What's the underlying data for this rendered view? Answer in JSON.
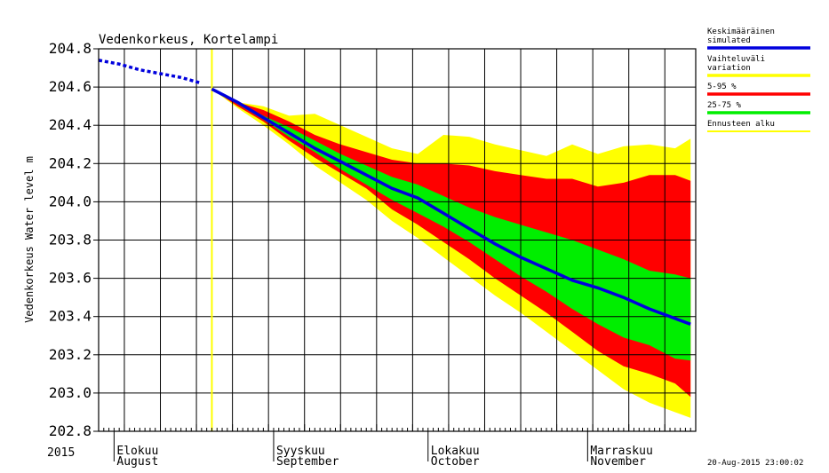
{
  "chart_data": {
    "type": "area",
    "title": "Vedenkorkeus, Kortelampi",
    "ylabel": "Vedenkorkeus Water level m",
    "xlabel": "",
    "ylim": [
      202.8,
      204.8
    ],
    "yticks": [
      "204.8",
      "204.6",
      "204.4",
      "204.2",
      "204.0",
      "203.8",
      "203.6",
      "203.4",
      "203.2",
      "203.0",
      "202.8"
    ],
    "year_label": "2015",
    "x_start": "2015-07-29",
    "x_end": "2015-11-22",
    "forecast_start": "2015-08-20",
    "grid": true,
    "month_labels": [
      {
        "fi": "Elokuu",
        "en": "August",
        "date": "2015-08-01"
      },
      {
        "fi": "Syyskuu",
        "en": "September",
        "date": "2015-09-01"
      },
      {
        "fi": "Lokakuu",
        "en": "October",
        "date": "2015-10-01"
      },
      {
        "fi": "Marraskuu",
        "en": "November",
        "date": "2015-11-01"
      }
    ],
    "legend_position": "right",
    "legend": [
      {
        "label": "Keskimääräinen\nsimulated",
        "color": "#0000dd"
      },
      {
        "label": "Vaihteluväli\nvariation",
        "color": "#ffff00"
      },
      {
        "label": "5-95 %",
        "color": "#ff0000"
      },
      {
        "label": "25-75 %",
        "color": "#00ee00"
      },
      {
        "label": "Ennusteen alku",
        "color": "#ffff00"
      }
    ],
    "series": [
      {
        "name": "observed",
        "color": "#0000dd",
        "x": [
          "2015-07-29",
          "2015-08-02",
          "2015-08-06",
          "2015-08-10",
          "2015-08-14",
          "2015-08-18"
        ],
        "values": [
          204.74,
          204.72,
          204.69,
          204.67,
          204.65,
          204.62
        ]
      },
      {
        "name": "Keskimääräinen simulated",
        "color": "#0000dd",
        "x": [
          "2015-08-20",
          "2015-08-25",
          "2015-08-30",
          "2015-09-04",
          "2015-09-09",
          "2015-09-14",
          "2015-09-19",
          "2015-09-24",
          "2015-09-29",
          "2015-10-04",
          "2015-10-09",
          "2015-10-14",
          "2015-10-19",
          "2015-10-24",
          "2015-10-29",
          "2015-11-03",
          "2015-11-08",
          "2015-11-13",
          "2015-11-18",
          "2015-11-21"
        ],
        "values": [
          204.59,
          204.52,
          204.44,
          204.36,
          204.28,
          204.21,
          204.14,
          204.07,
          204.02,
          203.94,
          203.86,
          203.78,
          203.71,
          203.65,
          203.59,
          203.55,
          203.5,
          203.44,
          203.39,
          203.36
        ]
      },
      {
        "name": "Vaihteluväli variation",
        "color": "#ffff00",
        "x": [
          "2015-08-20",
          "2015-08-25",
          "2015-08-30",
          "2015-09-04",
          "2015-09-09",
          "2015-09-14",
          "2015-09-19",
          "2015-09-24",
          "2015-09-29",
          "2015-10-04",
          "2015-10-09",
          "2015-10-14",
          "2015-10-19",
          "2015-10-24",
          "2015-10-29",
          "2015-11-03",
          "2015-11-08",
          "2015-11-13",
          "2015-11-18",
          "2015-11-21"
        ],
        "upper": [
          204.59,
          204.52,
          204.5,
          204.45,
          204.46,
          204.4,
          204.34,
          204.28,
          204.25,
          204.35,
          204.34,
          204.3,
          204.27,
          204.24,
          204.3,
          204.25,
          204.29,
          204.3,
          204.28,
          204.33
        ],
        "lower": [
          204.59,
          204.49,
          204.4,
          204.3,
          204.19,
          204.1,
          204.01,
          203.9,
          203.81,
          203.71,
          203.61,
          203.51,
          203.42,
          203.32,
          203.22,
          203.12,
          203.02,
          202.95,
          202.9,
          202.87
        ]
      },
      {
        "name": "5-95 %",
        "color": "#ff0000",
        "x": [
          "2015-08-20",
          "2015-08-25",
          "2015-08-30",
          "2015-09-04",
          "2015-09-09",
          "2015-09-14",
          "2015-09-19",
          "2015-09-24",
          "2015-09-29",
          "2015-10-04",
          "2015-10-09",
          "2015-10-14",
          "2015-10-19",
          "2015-10-24",
          "2015-10-29",
          "2015-11-03",
          "2015-11-08",
          "2015-11-13",
          "2015-11-18",
          "2015-11-21"
        ],
        "upper": [
          204.59,
          204.52,
          204.48,
          204.42,
          204.35,
          204.3,
          204.26,
          204.22,
          204.2,
          204.2,
          204.19,
          204.16,
          204.14,
          204.12,
          204.12,
          204.08,
          204.1,
          204.14,
          204.14,
          204.11
        ],
        "lower": [
          204.59,
          204.5,
          204.42,
          204.32,
          204.23,
          204.15,
          204.07,
          203.96,
          203.88,
          203.79,
          203.7,
          203.6,
          203.51,
          203.42,
          203.32,
          203.22,
          203.14,
          203.1,
          203.05,
          202.98
        ]
      },
      {
        "name": "25-75 %",
        "color": "#00ee00",
        "x": [
          "2015-08-20",
          "2015-08-25",
          "2015-08-30",
          "2015-09-04",
          "2015-09-09",
          "2015-09-14",
          "2015-09-19",
          "2015-09-24",
          "2015-09-29",
          "2015-10-04",
          "2015-10-09",
          "2015-10-14",
          "2015-10-19",
          "2015-10-24",
          "2015-10-29",
          "2015-11-03",
          "2015-11-08",
          "2015-11-13",
          "2015-11-18",
          "2015-11-21"
        ],
        "upper": [
          204.59,
          204.52,
          204.45,
          204.39,
          204.32,
          204.25,
          204.19,
          204.13,
          204.09,
          204.03,
          203.97,
          203.92,
          203.88,
          203.84,
          203.8,
          203.75,
          203.7,
          203.64,
          203.62,
          203.6
        ],
        "lower": [
          204.59,
          204.51,
          204.43,
          204.34,
          204.26,
          204.17,
          204.09,
          204.01,
          203.94,
          203.87,
          203.79,
          203.7,
          203.61,
          203.53,
          203.44,
          203.36,
          203.29,
          203.25,
          203.18,
          203.17
        ]
      }
    ]
  },
  "timestamp": "20-Aug-2015 23:00:02"
}
